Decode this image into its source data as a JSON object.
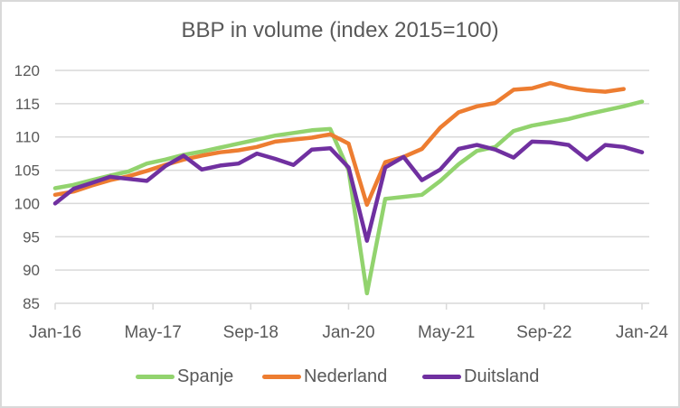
{
  "chart_data": {
    "type": "line",
    "title": "BBP in volume (index 2015=100)",
    "xlabel": "",
    "ylabel": "",
    "ylim": [
      85,
      120
    ],
    "yticks": [
      85,
      90,
      95,
      100,
      105,
      110,
      115,
      120
    ],
    "ytick_labels": [
      "85",
      "90",
      "95",
      "100",
      "105",
      "110",
      "115",
      "120"
    ],
    "xtick_labels": [
      "Jan-16",
      "May-17",
      "Sep-18",
      "Jan-20",
      "May-21",
      "Sep-22",
      "Jan-24"
    ],
    "xtick_months": [
      0,
      16,
      32,
      48,
      64,
      80,
      96
    ],
    "x_months": [
      0,
      3,
      6,
      9,
      12,
      15,
      18,
      21,
      24,
      27,
      30,
      33,
      36,
      39,
      42,
      45,
      48,
      51,
      54,
      57,
      60,
      63,
      66,
      69,
      72,
      75,
      78,
      81,
      84,
      87,
      90,
      93,
      96
    ],
    "x_labels": [
      "Jan-16",
      "Apr-16",
      "Jul-16",
      "Oct-16",
      "Jan-17",
      "Apr-17",
      "Jul-17",
      "Oct-17",
      "Jan-18",
      "Apr-18",
      "Jul-18",
      "Oct-18",
      "Jan-19",
      "Apr-19",
      "Jul-19",
      "Oct-19",
      "Jan-20",
      "Apr-20",
      "Jul-20",
      "Oct-20",
      "Jan-21",
      "Apr-21",
      "Jul-21",
      "Oct-21",
      "Jan-22",
      "Apr-22",
      "Jul-22",
      "Oct-22",
      "Jan-23",
      "Apr-23",
      "Jul-23",
      "Oct-23",
      "Jan-24"
    ],
    "grid": true,
    "legend_position": "bottom",
    "series": [
      {
        "name": "Spanje",
        "color": "#92d36e",
        "values": [
          102.3,
          102.8,
          103.5,
          104.2,
          104.8,
          106.0,
          106.6,
          107.3,
          107.8,
          108.4,
          109.0,
          109.6,
          110.2,
          110.6,
          111.0,
          111.2,
          105.0,
          86.5,
          100.7,
          101.0,
          101.3,
          103.4,
          105.9,
          107.9,
          108.5,
          110.9,
          111.7,
          112.2,
          112.7,
          113.4,
          114.0,
          114.6,
          115.3
        ]
      },
      {
        "name": "Nederland",
        "color": "#ed7d31",
        "values": [
          101.3,
          101.8,
          102.7,
          103.5,
          104.1,
          104.9,
          105.8,
          106.6,
          107.2,
          107.7,
          108.0,
          108.5,
          109.3,
          109.6,
          109.9,
          110.4,
          109.0,
          99.8,
          106.2,
          107.0,
          108.2,
          111.4,
          113.7,
          114.6,
          115.1,
          117.1,
          117.3,
          118.1,
          117.4,
          117.0,
          116.8,
          117.2,
          null
        ]
      },
      {
        "name": "Duitsland",
        "color": "#7030a0",
        "values": [
          100.0,
          102.2,
          103.1,
          104.0,
          103.7,
          103.4,
          105.6,
          107.2,
          105.1,
          105.7,
          106.0,
          107.5,
          106.7,
          105.8,
          108.1,
          108.3,
          105.4,
          94.4,
          105.4,
          107.0,
          103.5,
          105.1,
          108.2,
          108.8,
          108.1,
          106.9,
          109.3,
          109.2,
          108.8,
          106.6,
          108.8,
          108.5,
          107.7
        ]
      }
    ]
  }
}
